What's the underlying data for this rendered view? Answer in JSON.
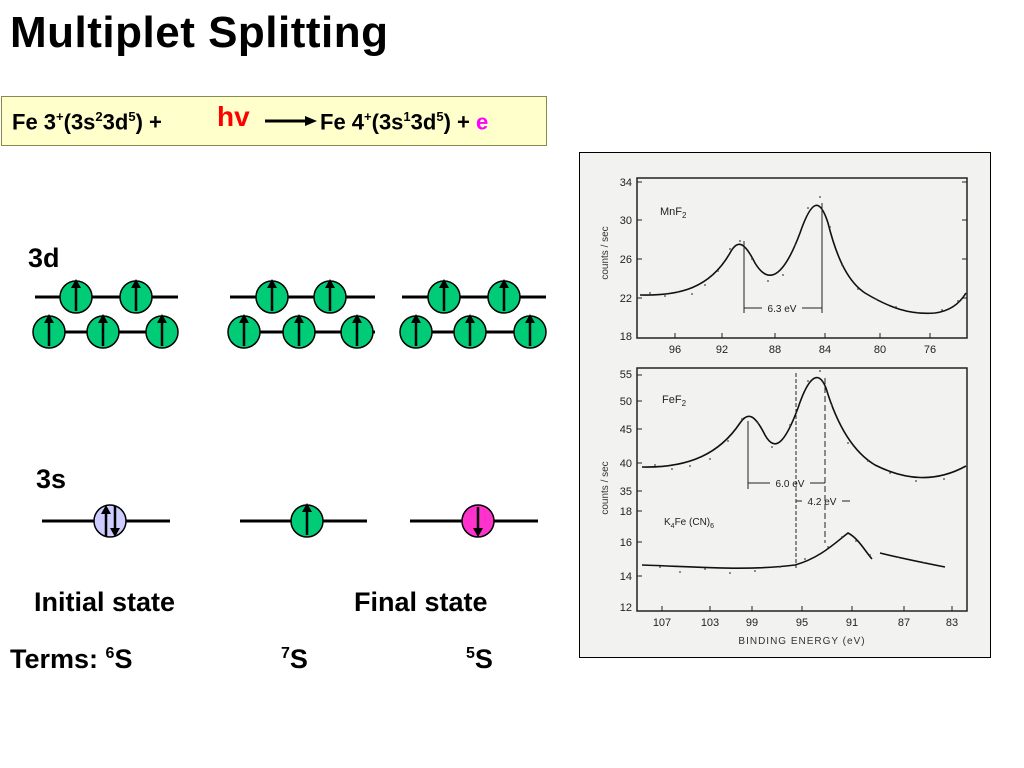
{
  "title": "Multiplet Splitting",
  "equation": {
    "left_prefix": "Fe 3",
    "left_charge": "+",
    "left_mid1": "(3s",
    "left_sup1": "2",
    "left_mid2": "3d",
    "left_sup2": "5",
    "left_suffix": ") +",
    "photon": "hv",
    "right_prefix": "Fe 4",
    "right_charge": "+",
    "right_mid1": "(3s",
    "right_sup1": "1",
    "right_mid2": "3d",
    "right_sup2": "5",
    "right_suffix": ") +",
    "electron": "e"
  },
  "labels": {
    "orbital_3d": "3d",
    "orbital_3s": "3s",
    "initial_state": "Initial  state",
    "final_state": "Final state",
    "terms_prefix": "Terms: ",
    "term1_sup": "6",
    "term1": "S",
    "term2_sup": "7",
    "term2": "S",
    "term3_sup": "5",
    "term3": "S"
  },
  "colors": {
    "electron_green": "#00cc77",
    "paired_lavender": "#ccccff",
    "spin_magenta": "#ff33cc",
    "hv_red": "#ff0000",
    "e_magenta": "#ff00ff"
  },
  "figure": {
    "panel_a": {
      "compound": "MnF",
      "compound_sub": "2",
      "y_ticks": [
        "34",
        "30",
        "26",
        "22",
        "18"
      ],
      "x_ticks": [
        "96",
        "92",
        "88",
        "84",
        "80",
        "76"
      ],
      "split_label": "6.3 eV"
    },
    "panel_b": {
      "compound": "FeF",
      "compound_sub": "2",
      "compound2": "K",
      "compound2_sub": "4",
      "compound2_rest": "Fe (CN)",
      "compound2_sub2": "6",
      "y_ticks_upper": [
        "55",
        "50",
        "45",
        "40",
        "35"
      ],
      "y_ticks_lower": [
        "18",
        "16",
        "14",
        "12"
      ],
      "x_ticks": [
        "107",
        "103",
        "99",
        "95",
        "91",
        "87",
        "83"
      ],
      "split_label_1": "6.0 eV",
      "split_label_2": "4.2 eV",
      "x_axis_label": "BINDING ENERGY (eV)"
    },
    "y_axis_label": "counts / sec"
  }
}
